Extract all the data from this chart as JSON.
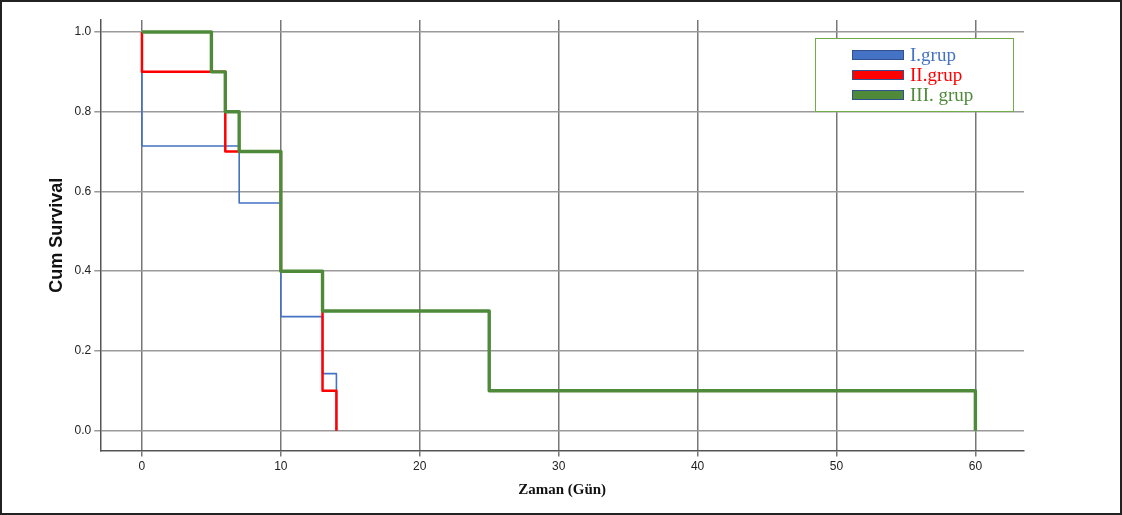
{
  "chart_data": {
    "type": "step",
    "xlabel": "Zaman (Gün)",
    "ylabel": "Cum Survival",
    "series": [
      {
        "name": "I.grup",
        "color": "#4472c4",
        "x": [
          0,
          0,
          7,
          10,
          13,
          14
        ],
        "values": [
          1,
          0.714,
          0.571,
          0.286,
          0.143,
          0
        ]
      },
      {
        "name": "II.grup",
        "color": "#ff0000",
        "x": [
          0,
          0,
          6,
          10,
          13,
          14
        ],
        "values": [
          1,
          0.9,
          0.7,
          0.4,
          0.1,
          0
        ]
      },
      {
        "name": "III. grup",
        "color": "#4e8a3a",
        "x": [
          0,
          5,
          6,
          7,
          10,
          13,
          25,
          60
        ],
        "values": [
          1,
          0.9,
          0.8,
          0.7,
          0.4,
          0.3,
          0.1,
          0
        ]
      }
    ],
    "xlim": [
      -3,
      63.5
    ],
    "xticks": [
      0,
      10,
      20,
      30,
      40,
      50,
      60
    ],
    "ylim": [
      -0.05,
      1.03
    ],
    "yticks": [
      {
        "value": 0,
        "label": "0.0"
      },
      {
        "value": 0.2,
        "label": "0.2"
      },
      {
        "value": 0.4,
        "label": "0.4"
      },
      {
        "value": 0.6,
        "label": "0.6"
      },
      {
        "value": 0.8,
        "label": "0.8"
      },
      {
        "value": 1,
        "label": "1.0"
      }
    ],
    "grid": true,
    "legend": "top right",
    "marker": "none",
    "line_style": "solid"
  }
}
